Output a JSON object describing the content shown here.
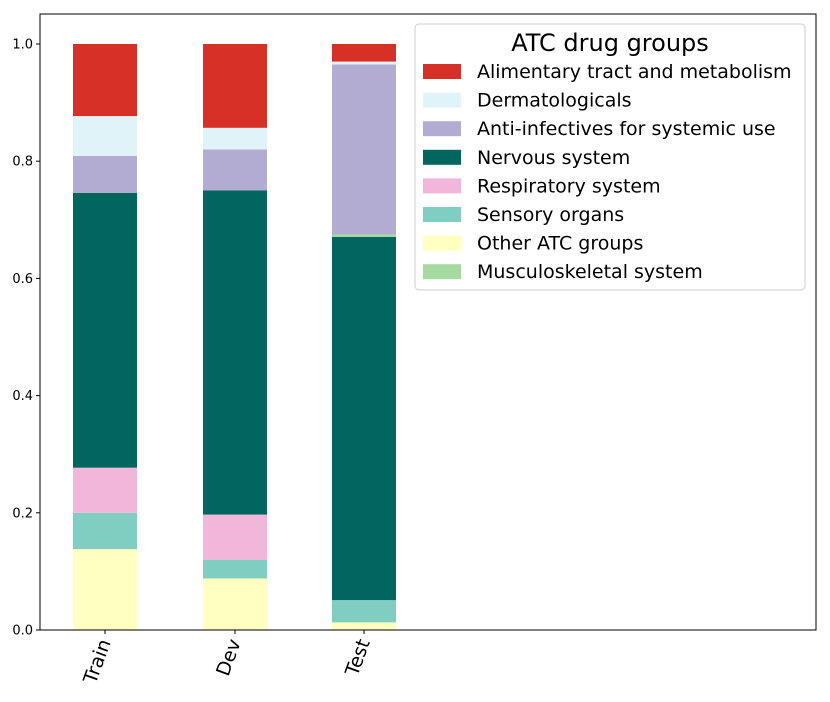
{
  "chart_data": {
    "type": "bar",
    "stacked": true,
    "categories": [
      "Train",
      "Dev",
      "Test"
    ],
    "ylim": [
      0,
      1.0
    ],
    "yticks": [
      "0.0",
      "0.2",
      "0.4",
      "0.6",
      "0.8",
      "1.0"
    ],
    "ytick_values": [
      0,
      0.2,
      0.4,
      0.6,
      0.8,
      1.0
    ],
    "legend_title": "ATC drug groups",
    "legend_position": "top-right",
    "series": [
      {
        "name": "Alimentary tract and metabolism",
        "color": "#d73027",
        "values": [
          0.123,
          0.143,
          0.03
        ]
      },
      {
        "name": "Dermatologicals",
        "color": "#e0f3f8",
        "values": [
          0.068,
          0.037,
          0.005
        ]
      },
      {
        "name": "Anti-infectives for systemic use",
        "color": "#b2abd2",
        "values": [
          0.063,
          0.07,
          0.29
        ]
      },
      {
        "name": "Nervous system",
        "color": "#01665e",
        "values": [
          0.469,
          0.553,
          0.62
        ]
      },
      {
        "name": "Respiratory system",
        "color": "#f1b6da",
        "values": [
          0.077,
          0.077,
          0.0
        ]
      },
      {
        "name": "Sensory organs",
        "color": "#80cdc1",
        "values": [
          0.062,
          0.032,
          0.038
        ]
      },
      {
        "name": "Other ATC groups",
        "color": "#ffffbf",
        "values": [
          0.138,
          0.088,
          0.013
        ]
      },
      {
        "name": "Musculoskeletal system",
        "color": "#a6dba0",
        "values": [
          0.0,
          0.0,
          0.004
        ]
      }
    ],
    "stack_order_bottom_to_top": [
      6,
      5,
      4,
      3,
      7,
      2,
      1,
      0
    ]
  }
}
